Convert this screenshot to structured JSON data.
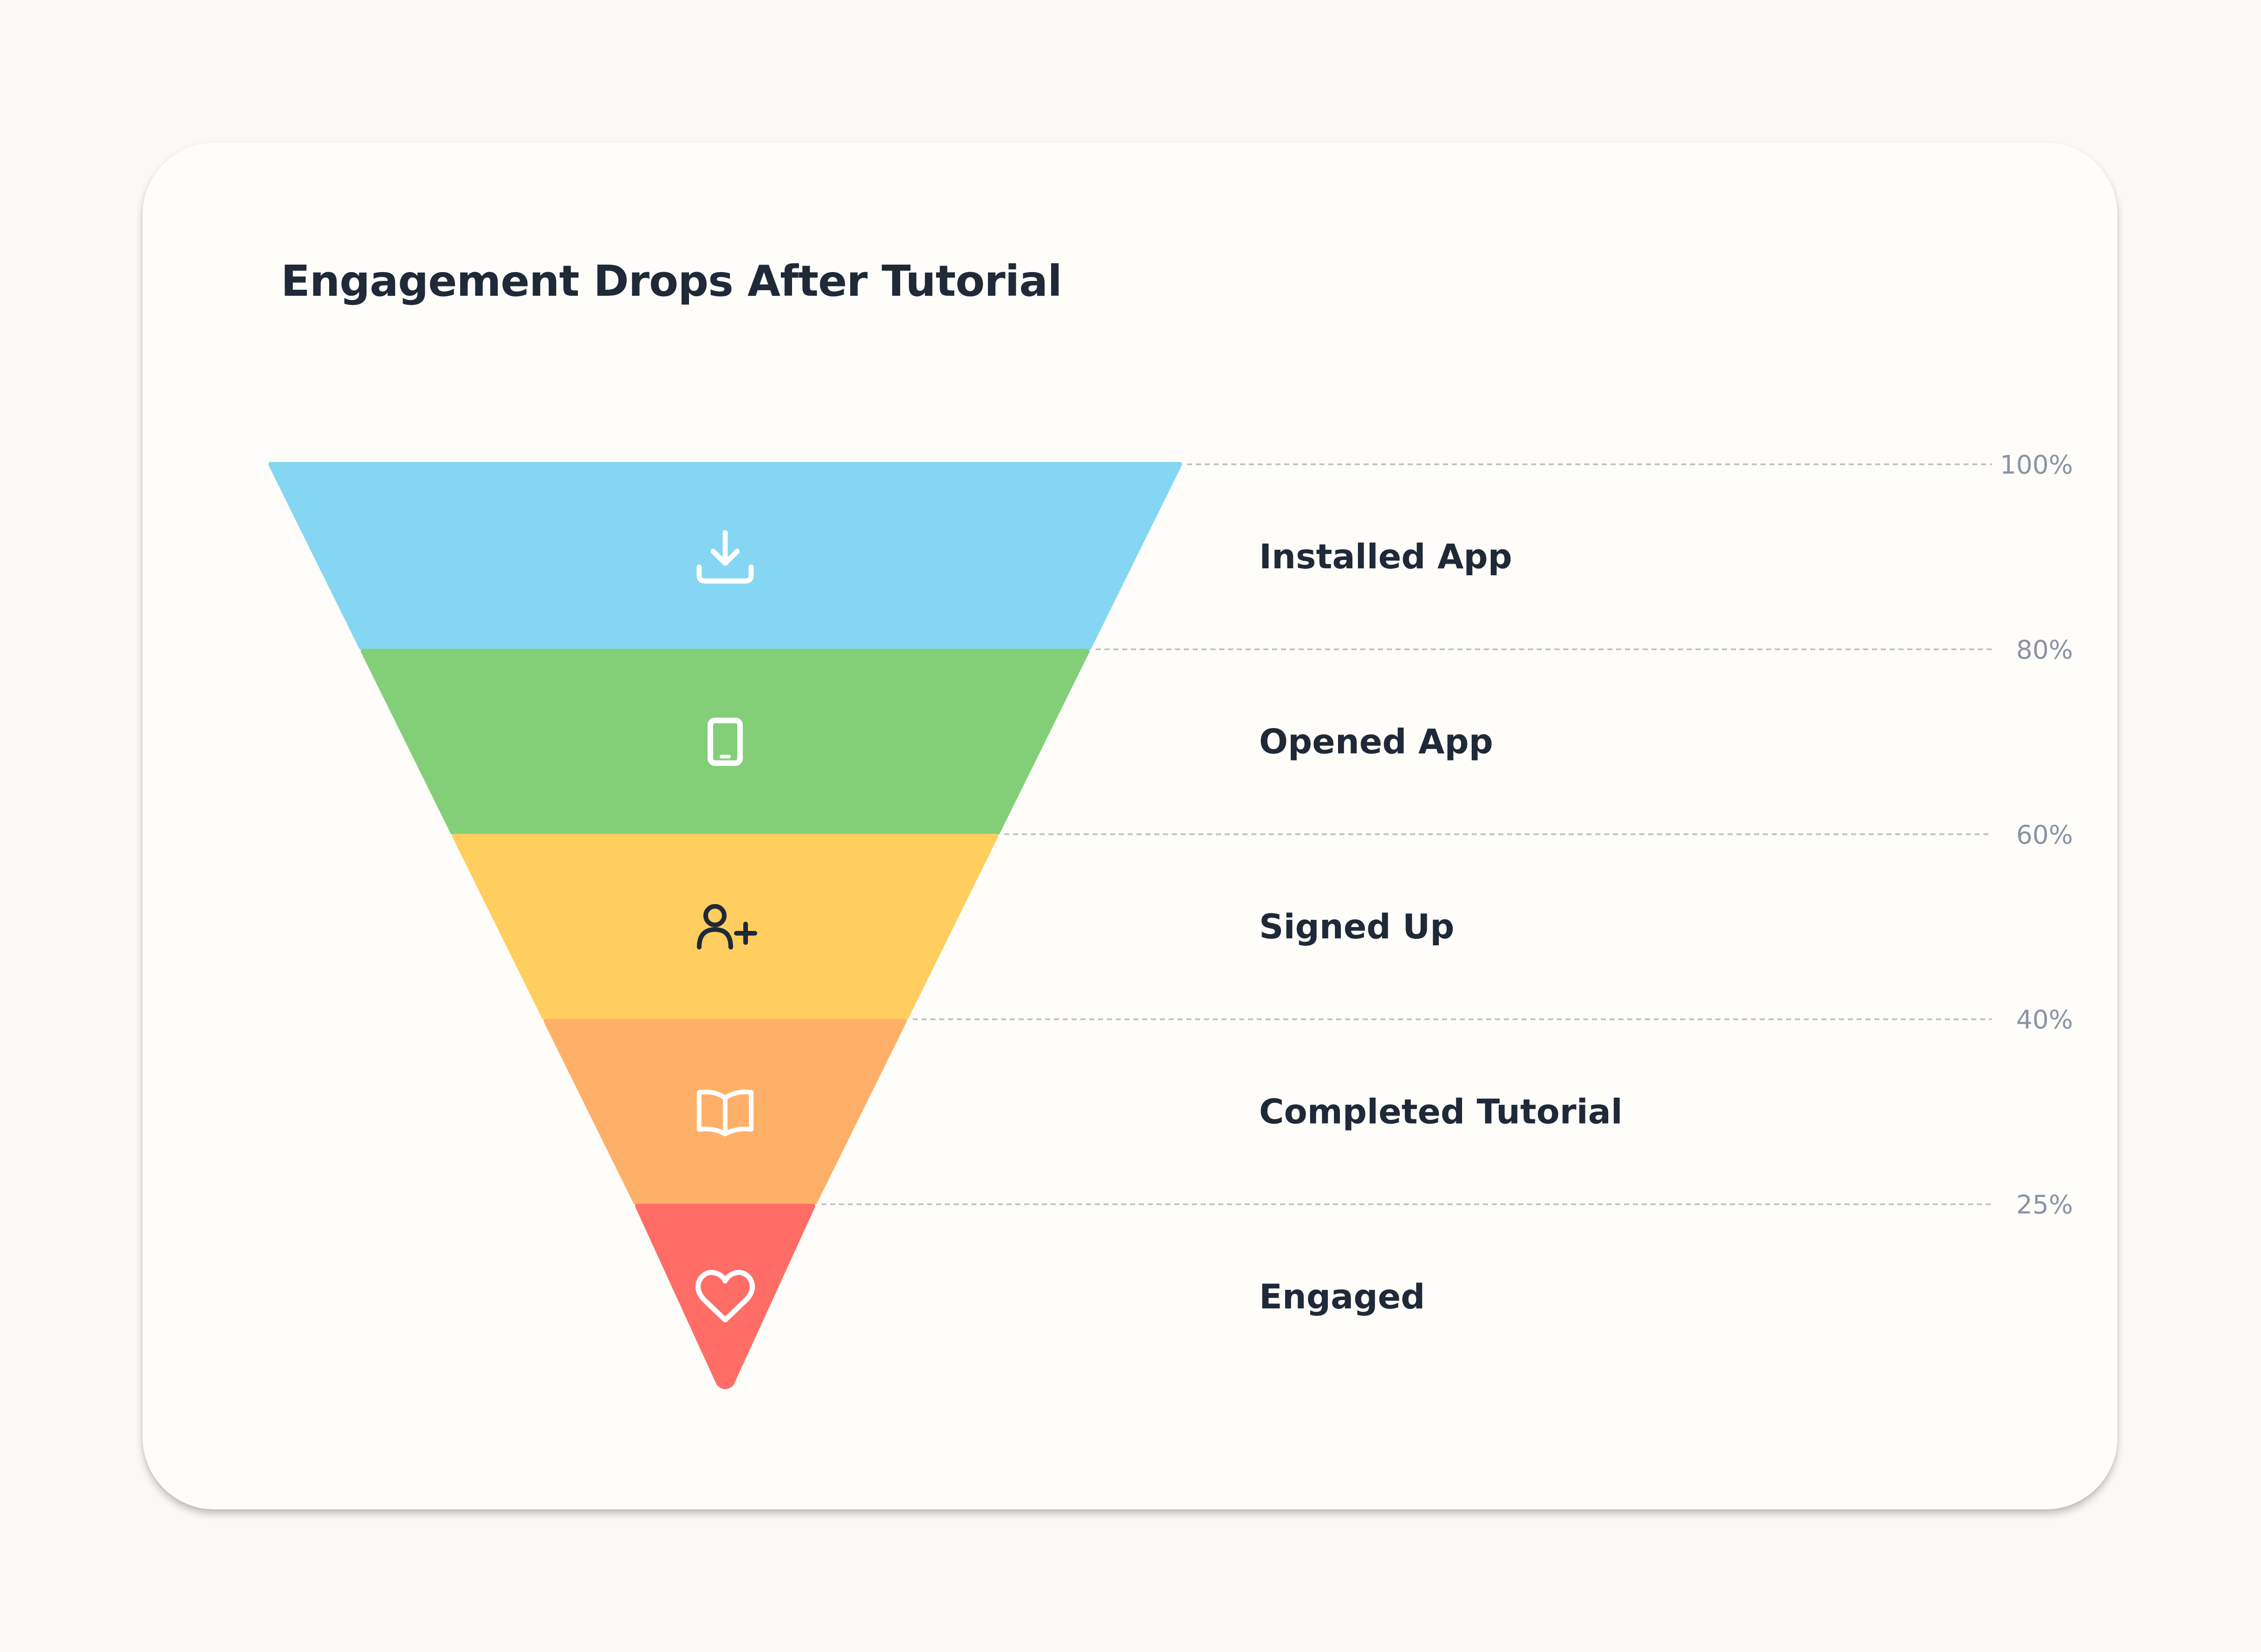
{
  "chart_data": {
    "type": "funnel",
    "title": "Engagement Drops After Tutorial",
    "stages": [
      {
        "label": "Installed App",
        "icon": "download-icon",
        "color": "#84D6F2",
        "icon_color": "#FFFFFF",
        "top_value": "100%"
      },
      {
        "label": "Opened App",
        "icon": "tablet-icon",
        "color": "#82CF78",
        "icon_color": "#FFFFFF",
        "top_value": "80%"
      },
      {
        "label": "Signed Up",
        "icon": "user-plus-icon",
        "color": "#FFCE5E",
        "icon_color": "#1F2937",
        "top_value": "60%"
      },
      {
        "label": "Completed Tutorial",
        "icon": "book-open-icon",
        "color": "#FFB068",
        "icon_color": "#FFFFFF",
        "top_value": "40%"
      },
      {
        "label": "Engaged",
        "icon": "heart-icon",
        "color": "#FF6D66",
        "icon_color": "#FFFFFF",
        "top_value": "25%"
      }
    ],
    "ticks": [
      "100%",
      "80%",
      "60%",
      "40%",
      "25%"
    ],
    "grid": true
  }
}
